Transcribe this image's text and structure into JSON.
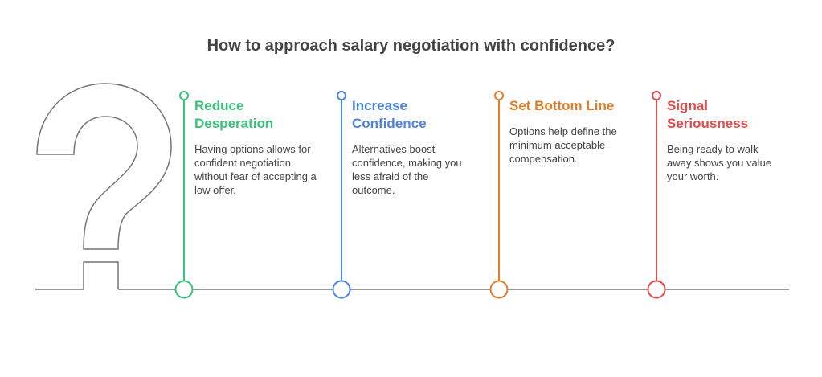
{
  "title": "How to approach salary negotiation with confidence?",
  "colors": {
    "line": "#757575",
    "step1": "#3cc27a",
    "step2": "#4d84db",
    "step3": "#e07e2a",
    "step4": "#e04b4b"
  },
  "icons": [
    "question-mark-icon"
  ],
  "steps": [
    {
      "title_line1": "Reduce",
      "title_line2": "Desperation",
      "description": "Having options allows for confident negotiation without fear of accepting a low offer."
    },
    {
      "title_line1": "Increase",
      "title_line2": "Confidence",
      "description": "Alternatives boost confidence, making you less afraid of the outcome."
    },
    {
      "title_line1": "Set Bottom Line",
      "title_line2": "",
      "description": "Options help define the minimum acceptable compensation."
    },
    {
      "title_line1": "Signal",
      "title_line2": "Seriousness",
      "description": "Being ready to walk away shows you value your worth."
    }
  ]
}
